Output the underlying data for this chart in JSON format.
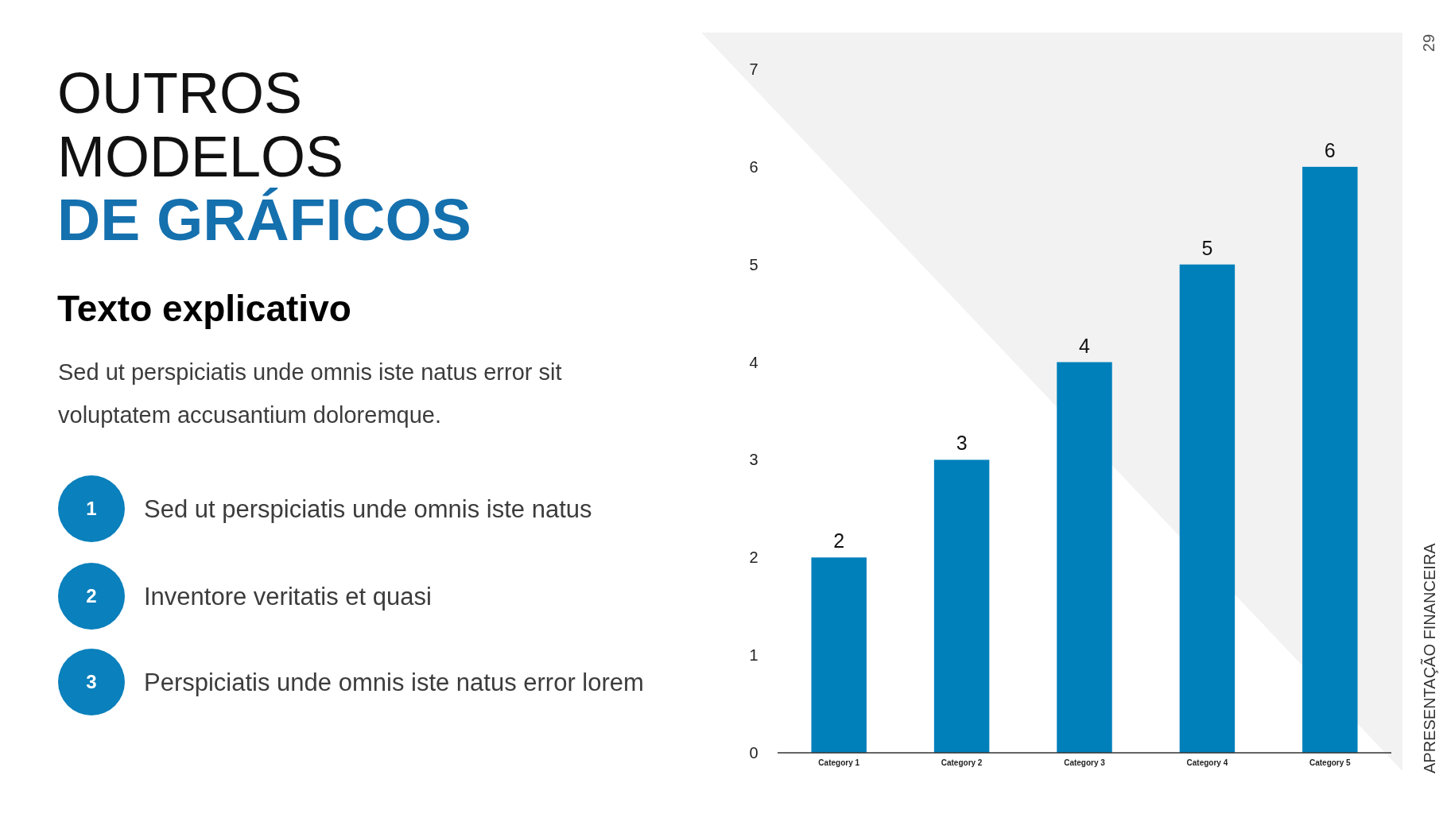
{
  "chart_data": {
    "type": "bar",
    "title": "OUTROS\nMODELOS\nDE GRÁFICOS",
    "subtitle": "Texto explicativo",
    "categories": [
      "Category 1",
      "Category 2",
      "Category 3",
      "Category 4",
      "Category 5"
    ],
    "values": [
      2,
      3,
      4,
      5,
      6
    ],
    "color": "#0080bb",
    "ylim": [
      0,
      7
    ],
    "yticks": [
      0,
      1,
      2,
      3,
      4,
      5,
      6,
      7
    ],
    "data_labels": true,
    "annotations": [
      "Sed ut perspiciatis unde omnis iste natus error sit voluptatem accusantium doloremque.",
      "1",
      "Sed ut perspiciatis unde omnis iste natus",
      "2",
      "Inventore veritatis et quasi",
      "3",
      "Perspiciatis unde omnis iste natus error lorem",
      "APRESENTAÇÃO FINANCEIRA",
      "29"
    ]
  }
}
